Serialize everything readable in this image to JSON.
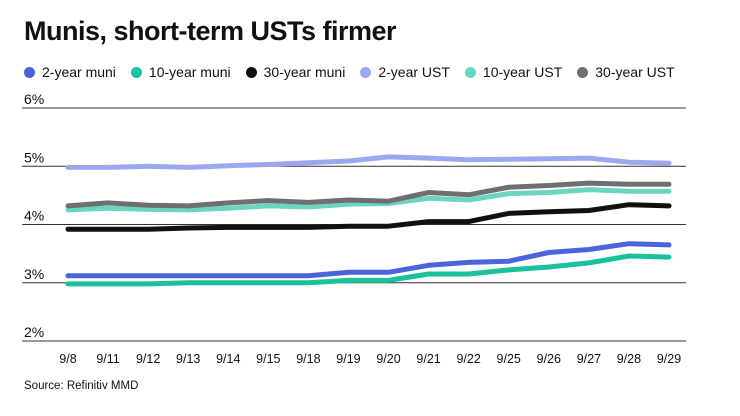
{
  "chart_data": {
    "type": "line",
    "title": "Munis, short-term USTs firmer",
    "xlabel": "",
    "ylabel": "",
    "ylim": [
      2,
      6
    ],
    "yticks": [
      {
        "value": 2,
        "label": "2%"
      },
      {
        "value": 3,
        "label": "3%"
      },
      {
        "value": 4,
        "label": "4%"
      },
      {
        "value": 5,
        "label": "5%"
      },
      {
        "value": 6,
        "label": "6%"
      }
    ],
    "grid": true,
    "legend": "top",
    "categories": [
      "9/8",
      "9/11",
      "9/12",
      "9/13",
      "9/14",
      "9/15",
      "9/18",
      "9/19",
      "9/20",
      "9/21",
      "9/22",
      "9/25",
      "9/26",
      "9/27",
      "9/28",
      "9/29"
    ],
    "series": [
      {
        "name": "2-year UST",
        "color": "#9aa8f0",
        "values": [
          4.98,
          4.98,
          5.0,
          4.98,
          5.01,
          5.03,
          5.06,
          5.09,
          5.16,
          5.14,
          5.11,
          5.12,
          5.13,
          5.14,
          5.07,
          5.05
        ]
      },
      {
        "name": "10-year UST",
        "color": "#6ad6c2",
        "values": [
          4.25,
          4.28,
          4.26,
          4.25,
          4.28,
          4.32,
          4.3,
          4.35,
          4.36,
          4.45,
          4.42,
          4.53,
          4.55,
          4.6,
          4.57,
          4.57
        ]
      },
      {
        "name": "30-year UST",
        "color": "#6f6f6f",
        "values": [
          4.32,
          4.37,
          4.33,
          4.32,
          4.37,
          4.41,
          4.38,
          4.42,
          4.4,
          4.55,
          4.51,
          4.64,
          4.67,
          4.71,
          4.69,
          4.69
        ]
      },
      {
        "name": "30-year muni",
        "color": "#111111",
        "values": [
          3.92,
          3.92,
          3.92,
          3.94,
          3.95,
          3.95,
          3.95,
          3.97,
          3.97,
          4.05,
          4.05,
          4.19,
          4.22,
          4.24,
          4.34,
          4.32
        ]
      },
      {
        "name": "2-year muni",
        "color": "#4a64db",
        "values": [
          3.12,
          3.12,
          3.12,
          3.12,
          3.12,
          3.12,
          3.12,
          3.18,
          3.18,
          3.3,
          3.35,
          3.37,
          3.52,
          3.57,
          3.67,
          3.65
        ]
      },
      {
        "name": "10-year muni",
        "color": "#19c19c",
        "values": [
          2.98,
          2.98,
          2.98,
          3.0,
          3.0,
          3.0,
          3.0,
          3.04,
          3.04,
          3.15,
          3.15,
          3.22,
          3.27,
          3.34,
          3.46,
          3.44
        ]
      }
    ],
    "legend_order": [
      "2-year muni",
      "10-year muni",
      "30-year muni",
      "2-year UST",
      "10-year UST",
      "30-year UST"
    ],
    "source": "Source: Refinitiv MMD"
  }
}
